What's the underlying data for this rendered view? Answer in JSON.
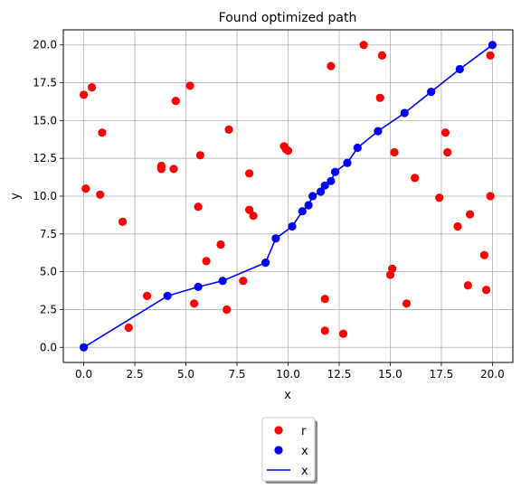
{
  "chart_data": {
    "type": "scatter",
    "title": "Found optimized path",
    "xlabel": "x",
    "ylabel": "y",
    "xlim": [
      -1.0,
      21.0
    ],
    "ylim": [
      -1.0,
      21.0
    ],
    "grid": true,
    "legend_position": "below",
    "x_ticks": [
      0.0,
      2.5,
      5.0,
      7.5,
      10.0,
      12.5,
      15.0,
      17.5,
      20.0
    ],
    "x_tick_labels": [
      "0.0",
      "2.5",
      "5.0",
      "7.5",
      "10.0",
      "12.5",
      "15.0",
      "17.5",
      "20.0"
    ],
    "y_ticks": [
      0.0,
      2.5,
      5.0,
      7.5,
      10.0,
      12.5,
      15.0,
      17.5,
      20.0
    ],
    "y_tick_labels": [
      "0.0",
      "2.5",
      "5.0",
      "7.5",
      "10.0",
      "12.5",
      "15.0",
      "17.5",
      "20.0"
    ],
    "series": [
      {
        "name": "r",
        "kind": "markers",
        "color": "#ff0000",
        "points": [
          [
            0.0,
            16.7
          ],
          [
            0.4,
            17.2
          ],
          [
            0.9,
            14.2
          ],
          [
            0.1,
            10.5
          ],
          [
            0.8,
            10.1
          ],
          [
            1.9,
            8.3
          ],
          [
            2.2,
            1.3
          ],
          [
            3.1,
            3.4
          ],
          [
            3.8,
            12.0
          ],
          [
            3.8,
            11.8
          ],
          [
            4.4,
            11.8
          ],
          [
            4.5,
            16.3
          ],
          [
            5.2,
            17.3
          ],
          [
            5.4,
            2.9
          ],
          [
            5.6,
            9.3
          ],
          [
            5.7,
            12.7
          ],
          [
            6.0,
            5.7
          ],
          [
            6.7,
            6.8
          ],
          [
            7.0,
            2.5
          ],
          [
            7.1,
            14.4
          ],
          [
            7.8,
            4.4
          ],
          [
            8.1,
            11.5
          ],
          [
            8.1,
            9.1
          ],
          [
            8.3,
            8.7
          ],
          [
            9.8,
            13.3
          ],
          [
            9.9,
            13.1
          ],
          [
            10.0,
            13.0
          ],
          [
            11.8,
            3.2
          ],
          [
            11.8,
            1.1
          ],
          [
            12.1,
            18.6
          ],
          [
            12.7,
            0.9
          ],
          [
            13.7,
            20.0
          ],
          [
            14.5,
            16.5
          ],
          [
            14.6,
            19.3
          ],
          [
            15.0,
            4.8
          ],
          [
            15.1,
            5.2
          ],
          [
            15.2,
            12.9
          ],
          [
            15.8,
            2.9
          ],
          [
            16.2,
            11.2
          ],
          [
            17.4,
            9.9
          ],
          [
            17.7,
            14.2
          ],
          [
            17.8,
            12.9
          ],
          [
            18.3,
            8.0
          ],
          [
            18.8,
            4.1
          ],
          [
            18.9,
            8.8
          ],
          [
            19.6,
            6.1
          ],
          [
            19.7,
            3.8
          ],
          [
            19.9,
            10.0
          ],
          [
            19.9,
            19.3
          ]
        ]
      },
      {
        "name": "x",
        "kind": "markers",
        "color": "#0000ff",
        "points": [
          [
            0.0,
            0.0
          ],
          [
            4.1,
            3.4
          ],
          [
            5.6,
            4.0
          ],
          [
            6.8,
            4.4
          ],
          [
            8.9,
            5.6
          ],
          [
            9.4,
            7.2
          ],
          [
            10.2,
            8.0
          ],
          [
            10.7,
            9.0
          ],
          [
            11.0,
            9.4
          ],
          [
            11.2,
            10.0
          ],
          [
            11.6,
            10.3
          ],
          [
            11.8,
            10.7
          ],
          [
            12.1,
            11.0
          ],
          [
            12.3,
            11.6
          ],
          [
            12.9,
            12.2
          ],
          [
            13.4,
            13.2
          ],
          [
            14.4,
            14.3
          ],
          [
            15.7,
            15.5
          ],
          [
            17.0,
            16.9
          ],
          [
            18.4,
            18.4
          ],
          [
            20.0,
            20.0
          ]
        ]
      },
      {
        "name": "x",
        "kind": "line",
        "color": "#0000ff",
        "points": [
          [
            0.0,
            0.0
          ],
          [
            4.1,
            3.4
          ],
          [
            5.6,
            4.0
          ],
          [
            6.8,
            4.4
          ],
          [
            8.9,
            5.6
          ],
          [
            9.4,
            7.2
          ],
          [
            10.2,
            8.0
          ],
          [
            10.7,
            9.0
          ],
          [
            11.0,
            9.4
          ],
          [
            11.2,
            10.0
          ],
          [
            11.6,
            10.3
          ],
          [
            11.8,
            10.7
          ],
          [
            12.1,
            11.0
          ],
          [
            12.3,
            11.6
          ],
          [
            12.9,
            12.2
          ],
          [
            13.4,
            13.2
          ],
          [
            14.4,
            14.3
          ],
          [
            15.7,
            15.5
          ],
          [
            17.0,
            16.9
          ],
          [
            18.4,
            18.4
          ],
          [
            20.0,
            20.0
          ]
        ]
      }
    ]
  }
}
